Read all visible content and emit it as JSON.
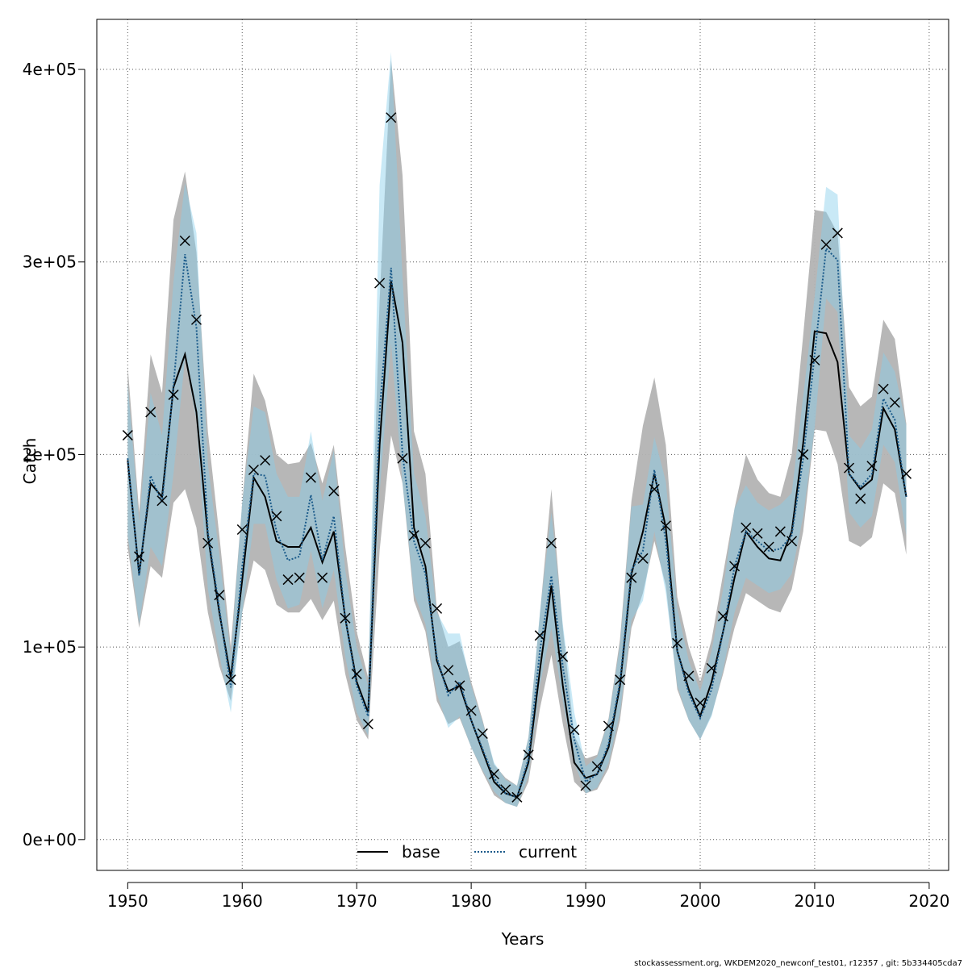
{
  "chart_data": {
    "type": "line",
    "title": "",
    "xlabel": "Years",
    "ylabel": "Catch",
    "xlim": [
      1947.3,
      2021.7
    ],
    "ylim": [
      -16000,
      426000
    ],
    "x_ticks": [
      1950,
      1960,
      1970,
      1980,
      1990,
      2000,
      2010,
      2020
    ],
    "x_tick_labels": [
      "1950",
      "1960",
      "1970",
      "1980",
      "1990",
      "2000",
      "2010",
      "2020"
    ],
    "y_ticks": [
      0,
      100000,
      200000,
      300000,
      400000
    ],
    "y_tick_labels": [
      "0e+00",
      "1e+05",
      "2e+05",
      "3e+05",
      "4e+05"
    ],
    "grid": true,
    "legend_position": "bottom-center",
    "x": [
      1950,
      1951,
      1952,
      1953,
      1954,
      1955,
      1956,
      1957,
      1958,
      1959,
      1960,
      1961,
      1962,
      1963,
      1964,
      1965,
      1966,
      1967,
      1968,
      1969,
      1970,
      1971,
      1972,
      1973,
      1974,
      1975,
      1976,
      1977,
      1978,
      1979,
      1980,
      1981,
      1982,
      1983,
      1984,
      1985,
      1986,
      1987,
      1988,
      1989,
      1990,
      1991,
      1992,
      1993,
      1994,
      1995,
      1996,
      1997,
      1998,
      1999,
      2000,
      2001,
      2002,
      2003,
      2004,
      2005,
      2006,
      2007,
      2008,
      2009,
      2010,
      2011,
      2012,
      2013,
      2014,
      2015,
      2016,
      2017,
      2018
    ],
    "series": [
      {
        "name": "base",
        "color": "#000000",
        "line_style": "solid",
        "band_color": "#b3b3b3",
        "values": [
          197000,
          138000,
          185000,
          178000,
          235000,
          252000,
          222000,
          158000,
          118000,
          84000,
          135000,
          188000,
          178000,
          155000,
          152000,
          152000,
          162000,
          144000,
          160000,
          115000,
          82000,
          66000,
          205000,
          290000,
          258000,
          162000,
          142000,
          93000,
          77000,
          80000,
          62000,
          46000,
          30000,
          24000,
          22000,
          40000,
          88000,
          132000,
          80000,
          40000,
          32000,
          34000,
          48000,
          80000,
          138000,
          160000,
          190000,
          162000,
          98000,
          78000,
          64000,
          82000,
          108000,
          136000,
          160000,
          152000,
          146000,
          145000,
          160000,
          206000,
          264000,
          263000,
          248000,
          190000,
          182000,
          187000,
          224000,
          213000,
          178000
        ],
        "lower": [
          152000,
          110000,
          142000,
          136000,
          175000,
          182000,
          162000,
          118000,
          90000,
          72000,
          118000,
          145000,
          140000,
          122000,
          118000,
          118000,
          125000,
          114000,
          124000,
          86000,
          62000,
          52000,
          150000,
          210000,
          185000,
          124000,
          108000,
          72000,
          60000,
          63000,
          48000,
          35000,
          23000,
          19000,
          17000,
          30000,
          68000,
          96000,
          60000,
          30000,
          24000,
          26000,
          37000,
          62000,
          110000,
          128000,
          155000,
          132000,
          78000,
          62000,
          52000,
          65000,
          86000,
          110000,
          128000,
          124000,
          120000,
          118000,
          130000,
          160000,
          213000,
          212000,
          195000,
          155000,
          152000,
          157000,
          185000,
          180000,
          148000
        ],
        "upper": [
          246000,
          170000,
          252000,
          232000,
          322000,
          347000,
          305000,
          212000,
          158000,
          100000,
          175000,
          242000,
          228000,
          200000,
          195000,
          196000,
          206000,
          185000,
          205000,
          152000,
          108000,
          84000,
          280000,
          405000,
          345000,
          212000,
          190000,
          120000,
          100000,
          103000,
          82000,
          62000,
          39000,
          32000,
          28000,
          53000,
          117000,
          182000,
          110000,
          54000,
          42000,
          44000,
          63000,
          104000,
          176000,
          215000,
          240000,
          205000,
          126000,
          100000,
          82000,
          104000,
          138000,
          172000,
          200000,
          187000,
          180000,
          178000,
          200000,
          262000,
          327000,
          326000,
          315000,
          235000,
          225000,
          230000,
          270000,
          260000,
          216000
        ]
      },
      {
        "name": "current",
        "color": "#1a5a8a",
        "line_style": "dotted",
        "band_color": "#87ceeb",
        "values": [
          198000,
          137000,
          189000,
          175000,
          236000,
          304000,
          266000,
          160000,
          120000,
          79000,
          142000,
          190000,
          189000,
          160000,
          145000,
          147000,
          179000,
          145000,
          168000,
          115000,
          80000,
          64000,
          222000,
          297000,
          200000,
          155000,
          138000,
          95000,
          75000,
          82000,
          62000,
          47000,
          32000,
          24000,
          22000,
          42000,
          98000,
          137000,
          90000,
          52000,
          30000,
          34000,
          50000,
          82000,
          140000,
          150000,
          192000,
          155000,
          98000,
          76000,
          63000,
          78000,
          108000,
          142000,
          160000,
          155000,
          150000,
          151000,
          158000,
          198000,
          252000,
          307000,
          301000,
          190000,
          183000,
          190000,
          229000,
          218000,
          178000
        ],
        "lower": [
          158000,
          112000,
          152000,
          142000,
          190000,
          250000,
          218000,
          130000,
          96000,
          66000,
          118000,
          164000,
          164000,
          135000,
          120000,
          122000,
          150000,
          120000,
          140000,
          95000,
          66000,
          54000,
          180000,
          258000,
          185000,
          128000,
          112000,
          76000,
          58000,
          64000,
          48000,
          36000,
          25000,
          19000,
          17000,
          33000,
          80000,
          110000,
          72000,
          40000,
          24000,
          27000,
          40000,
          66000,
          114000,
          124000,
          160000,
          128000,
          80000,
          62000,
          52000,
          64000,
          88000,
          118000,
          136000,
          132000,
          128000,
          130000,
          138000,
          168000,
          214000,
          281000,
          274000,
          170000,
          162000,
          168000,
          205000,
          196000,
          158000
        ],
        "upper": [
          237000,
          165000,
          232000,
          210000,
          290000,
          341000,
          315000,
          195000,
          148000,
          95000,
          175000,
          225000,
          222000,
          190000,
          178000,
          178000,
          212000,
          176000,
          202000,
          140000,
          100000,
          80000,
          340000,
          409000,
          292000,
          190000,
          168000,
          118000,
          107000,
          107000,
          80000,
          61000,
          40000,
          31000,
          28000,
          53000,
          118000,
          170000,
          112000,
          66000,
          38000,
          43000,
          62000,
          101000,
          173000,
          174000,
          209000,
          186000,
          120000,
          93000,
          77000,
          98000,
          130000,
          172000,
          184000,
          175000,
          171000,
          174000,
          180000,
          230000,
          282000,
          339000,
          335000,
          210000,
          203000,
          213000,
          253000,
          243000,
          215000
        ]
      }
    ],
    "observed": {
      "marker": "x",
      "values": [
        210000,
        147000,
        222000,
        176000,
        231000,
        311000,
        270000,
        154000,
        127000,
        83000,
        161000,
        192000,
        197000,
        168000,
        135000,
        136000,
        188000,
        136000,
        181000,
        115000,
        86000,
        60000,
        289000,
        375000,
        198000,
        158000,
        154000,
        120000,
        88000,
        80000,
        67000,
        55000,
        34000,
        26000,
        22000,
        44000,
        106000,
        154000,
        95000,
        57000,
        28000,
        38000,
        59000,
        83000,
        136000,
        146000,
        182000,
        163000,
        102000,
        85000,
        71000,
        89000,
        116000,
        142000,
        162000,
        159000,
        152000,
        160000,
        155000,
        200000,
        249000,
        309000,
        315000,
        193000,
        177000,
        194000,
        234000,
        227000,
        190000
      ]
    }
  },
  "footer": {
    "text": "stockassessment.org, WKDEM2020_newconf_test01, r12357 , git: 5b334405cda7"
  }
}
